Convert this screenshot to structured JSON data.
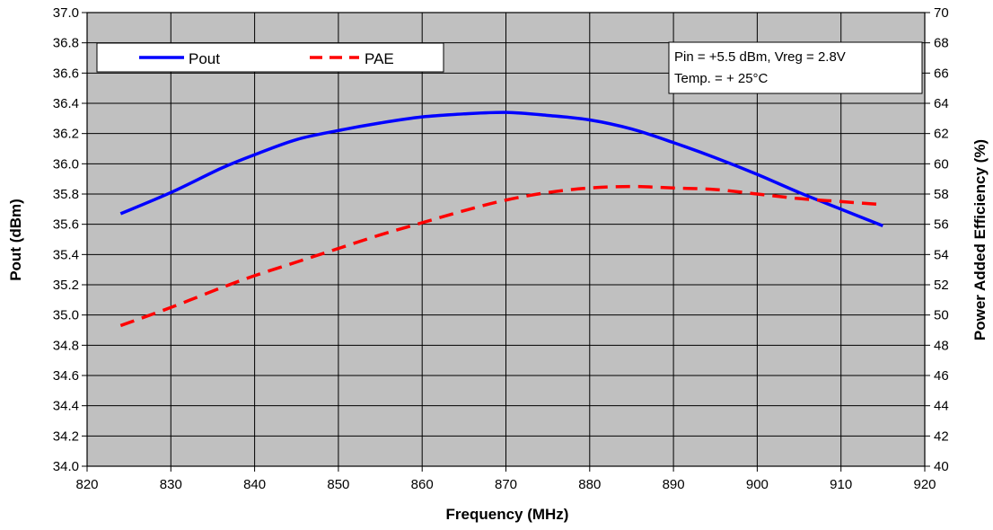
{
  "chart_data": {
    "type": "line",
    "title": "",
    "xlabel": "Frequency (MHz)",
    "ylabel": "Pout (dBm)",
    "y2label": "Power Added Efficiency (%)",
    "xlim": [
      820,
      920
    ],
    "ylim": [
      34.0,
      37.0
    ],
    "y2lim": [
      40,
      70
    ],
    "x_ticks": [
      "820",
      "830",
      "840",
      "850",
      "860",
      "870",
      "880",
      "890",
      "900",
      "910",
      "920"
    ],
    "y_ticks": [
      "34.0",
      "34.2",
      "34.4",
      "34.6",
      "34.8",
      "35.0",
      "35.2",
      "35.4",
      "35.6",
      "35.8",
      "36.0",
      "36.2",
      "36.4",
      "36.6",
      "36.8",
      "37.0"
    ],
    "y2_ticks": [
      "40",
      "42",
      "44",
      "46",
      "48",
      "50",
      "52",
      "54",
      "56",
      "58",
      "60",
      "62",
      "64",
      "66",
      "68",
      "70"
    ],
    "grid": true,
    "background": "#c0c0c0",
    "legend_position": "top-left",
    "annotation": [
      "Pin = +5.5 dBm, Vreg = 2.8V",
      "Temp. = + 25°C"
    ],
    "series": [
      {
        "name": "Pout",
        "axis": "left",
        "color": "#0000ff",
        "style": "solid",
        "x": [
          824,
          830,
          836,
          840,
          845,
          850,
          855,
          860,
          865,
          870,
          875,
          880,
          885,
          890,
          895,
          900,
          905,
          910,
          915
        ],
        "values": [
          35.67,
          35.81,
          35.97,
          36.06,
          36.16,
          36.22,
          36.27,
          36.31,
          36.33,
          36.34,
          36.32,
          36.29,
          36.23,
          36.14,
          36.04,
          35.93,
          35.81,
          35.7,
          35.59
        ]
      },
      {
        "name": "PAE",
        "axis": "right",
        "color": "#ff0000",
        "style": "dashed",
        "x": [
          824,
          830,
          836,
          840,
          845,
          850,
          855,
          860,
          865,
          870,
          875,
          880,
          885,
          890,
          895,
          900,
          905,
          910,
          915
        ],
        "values": [
          49.3,
          50.5,
          51.8,
          52.6,
          53.5,
          54.4,
          55.3,
          56.1,
          56.9,
          57.6,
          58.1,
          58.4,
          58.5,
          58.4,
          58.3,
          58.0,
          57.7,
          57.5,
          57.3
        ]
      }
    ]
  }
}
